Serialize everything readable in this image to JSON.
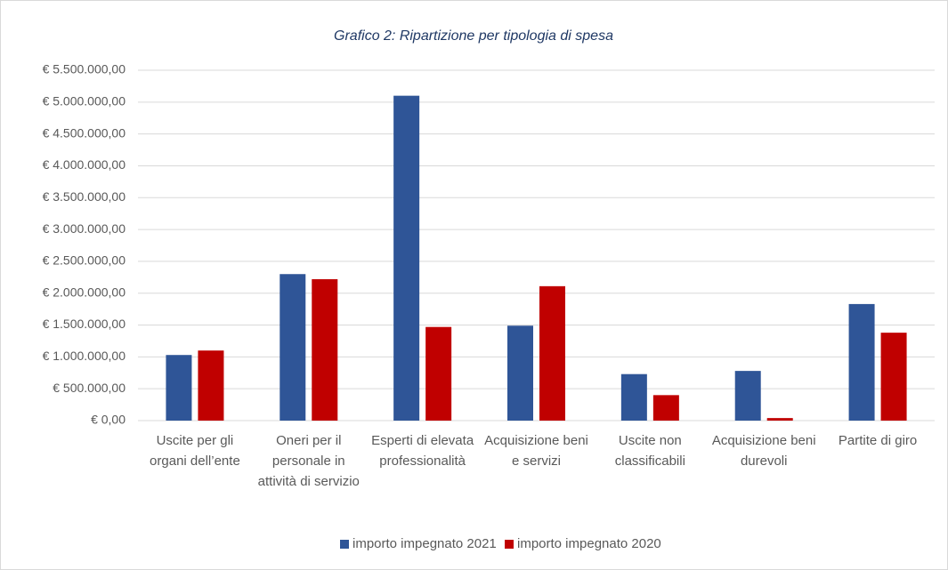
{
  "chart_data": {
    "type": "bar",
    "title": "Grafico 2: Ripartizione per tipologia di spesa",
    "categories": [
      "Uscite per gli organi dell’ente",
      "Oneri per il personale in attività di servizio",
      "Esperti di elevata professionalità",
      "Acquisizione beni e servizi",
      "Uscite non classificabili",
      "Acquisizione beni durevoli",
      "Partite di giro"
    ],
    "series": [
      {
        "name": "importo impegnato 2021",
        "color": "#2f5597",
        "values": [
          1030000,
          2300000,
          5100000,
          1490000,
          730000,
          780000,
          1830000
        ]
      },
      {
        "name": "importo impegnato 2020",
        "color": "#c00000",
        "values": [
          1100000,
          2220000,
          1470000,
          2110000,
          400000,
          40000,
          1380000
        ]
      }
    ],
    "ylim": [
      0,
      5500000
    ],
    "yticks": [
      {
        "value": 0,
        "label": "€ 0,00"
      },
      {
        "value": 500000,
        "label": "€ 500.000,00"
      },
      {
        "value": 1000000,
        "label": "€ 1.000.000,00"
      },
      {
        "value": 1500000,
        "label": "€ 1.500.000,00"
      },
      {
        "value": 2000000,
        "label": "€ 2.000.000,00"
      },
      {
        "value": 2500000,
        "label": "€ 2.500.000,00"
      },
      {
        "value": 3000000,
        "label": "€ 3.000.000,00"
      },
      {
        "value": 3500000,
        "label": "€ 3.500.000,00"
      },
      {
        "value": 4000000,
        "label": "€ 4.000.000,00"
      },
      {
        "value": 4500000,
        "label": "€ 4.500.000,00"
      },
      {
        "value": 5000000,
        "label": "€ 5.000.000,00"
      },
      {
        "value": 5500000,
        "label": "€ 5.500.000,00"
      }
    ],
    "grid": true,
    "legend": "bottom"
  }
}
